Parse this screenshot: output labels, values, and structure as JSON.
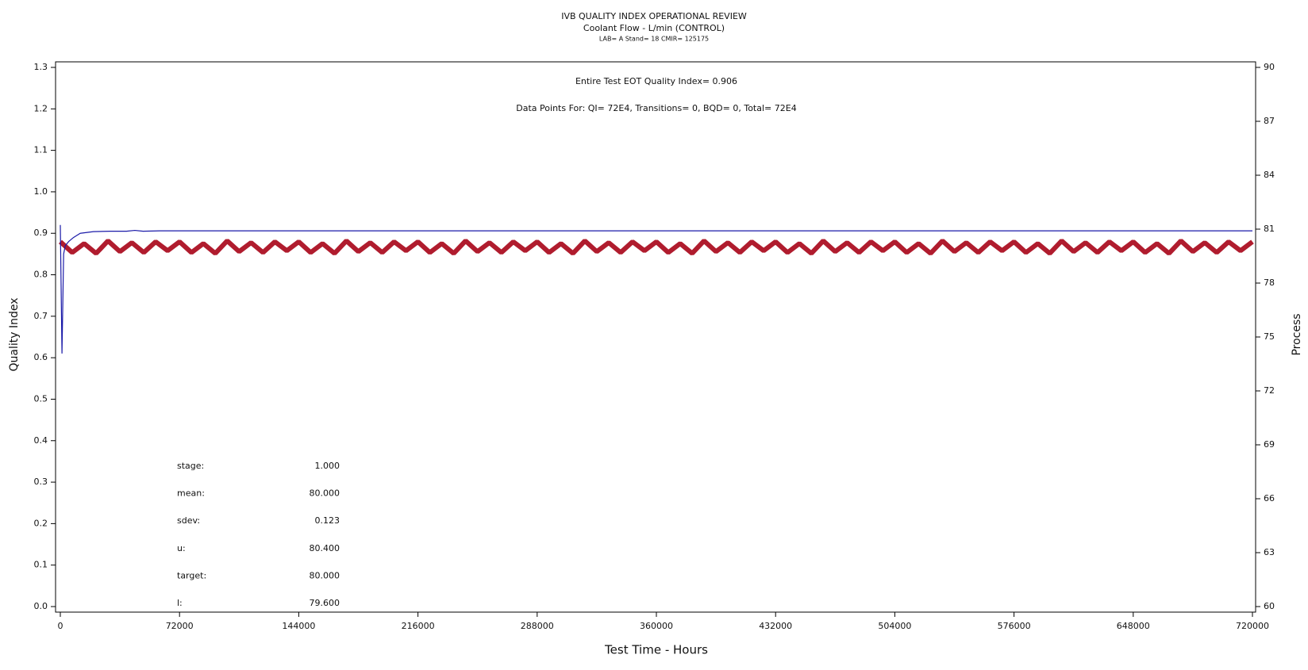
{
  "chart_data": {
    "type": "line",
    "title": "IVB QUALITY INDEX OPERATIONAL REVIEW",
    "subtitle": "Coolant Flow - L/min (CONTROL)",
    "caption": "LAB= A Stand= 18 CMIR= 125175",
    "annotations": [
      "Entire Test EOT Quality Index=   0.906",
      "Data Points For: QI=  72E4, Transitions=     0, BQD=     0, Total=  72E4"
    ],
    "stats": [
      {
        "label": "stage:",
        "value": "1.000"
      },
      {
        "label": "mean:",
        "value": "80.000"
      },
      {
        "label": "sdev:",
        "value": "0.123"
      },
      {
        "label": "u:",
        "value": "80.400"
      },
      {
        "label": "target:",
        "value": "80.000"
      },
      {
        "label": "l:",
        "value": "79.600"
      }
    ],
    "xlabel": "Test Time - Hours",
    "ylabel": "Quality Index",
    "y2label": "Process",
    "xlim": [
      0,
      720000
    ],
    "xticks": [
      0,
      72000,
      144000,
      216000,
      288000,
      360000,
      432000,
      504000,
      576000,
      648000,
      720000
    ],
    "ylim": [
      0,
      1.3
    ],
    "yticks": [
      {
        "value": 0,
        "label": "0.0"
      },
      0.1,
      0.2,
      0.3,
      0.4,
      0.5,
      0.6,
      0.7,
      0.8,
      0.9,
      {
        "value": 1,
        "label": "1.0"
      },
      1.1,
      1.2,
      1.3
    ],
    "y2lim": [
      60,
      90
    ],
    "y2ticks": [
      60,
      63,
      66,
      69,
      72,
      75,
      78,
      81,
      84,
      87,
      90
    ],
    "series": [
      {
        "name": "Quality Index",
        "color": "#1a1aa8",
        "axis": "y",
        "x": [
          0,
          1000,
          2000,
          3000,
          5000,
          8000,
          12000,
          20000,
          30000,
          40000,
          45000,
          50000,
          60000,
          720000
        ],
        "values": [
          0.92,
          0.61,
          0.85,
          0.87,
          0.88,
          0.89,
          0.9,
          0.904,
          0.905,
          0.905,
          0.907,
          0.905,
          0.906,
          0.906
        ]
      },
      {
        "name": "Process",
        "color": "#b01c2e",
        "axis": "y2",
        "x": [
          0,
          7200,
          14400,
          21600,
          28800,
          36000,
          43200,
          50400,
          57600,
          64800,
          72000,
          79200,
          86400,
          93600,
          100800,
          108000,
          115200,
          122400,
          129600,
          136800,
          144000,
          151200,
          158400,
          165600,
          172800,
          180000,
          187200,
          194400,
          201600,
          208800,
          216000,
          223200,
          230400,
          237600,
          244800,
          252000,
          259200,
          266400,
          273600,
          280800,
          288000,
          295200,
          302400,
          309600,
          316800,
          324000,
          331200,
          338400,
          345600,
          352800,
          360000,
          367200,
          374400,
          381600,
          388800,
          396000,
          403200,
          410400,
          417600,
          424800,
          432000,
          439200,
          446400,
          453600,
          460800,
          468000,
          475200,
          482400,
          489600,
          496800,
          504000,
          511200,
          518400,
          525600,
          532800,
          540000,
          547200,
          554400,
          561600,
          568800,
          576000,
          583200,
          590400,
          597600,
          604800,
          612000,
          619200,
          626400,
          633600,
          640800,
          648000,
          655200,
          662400,
          669600,
          676800,
          684000,
          691200,
          698400,
          705600,
          712800,
          720000
        ],
        "values": [
          80.3,
          79.7,
          80.2,
          79.65,
          80.35,
          79.75,
          80.25,
          79.7,
          80.3,
          79.8,
          80.3,
          79.7,
          80.2,
          79.65,
          80.35,
          79.75,
          80.25,
          79.7,
          80.3,
          79.8,
          80.3,
          79.7,
          80.2,
          79.65,
          80.35,
          79.75,
          80.25,
          79.7,
          80.3,
          79.8,
          80.3,
          79.7,
          80.2,
          79.65,
          80.35,
          79.75,
          80.25,
          79.7,
          80.3,
          79.8,
          80.3,
          79.7,
          80.2,
          79.65,
          80.35,
          79.75,
          80.25,
          79.7,
          80.3,
          79.8,
          80.3,
          79.7,
          80.2,
          79.65,
          80.35,
          79.75,
          80.25,
          79.7,
          80.3,
          79.8,
          80.3,
          79.7,
          80.2,
          79.65,
          80.35,
          79.75,
          80.25,
          79.7,
          80.3,
          79.8,
          80.3,
          79.7,
          80.2,
          79.65,
          80.35,
          79.75,
          80.25,
          79.7,
          80.3,
          79.8,
          80.3,
          79.7,
          80.2,
          79.65,
          80.35,
          79.75,
          80.25,
          79.7,
          80.3,
          79.8,
          80.3,
          79.7,
          80.2,
          79.65,
          80.35,
          79.75,
          80.25,
          79.7,
          80.3,
          79.8,
          80.3
        ]
      }
    ]
  }
}
